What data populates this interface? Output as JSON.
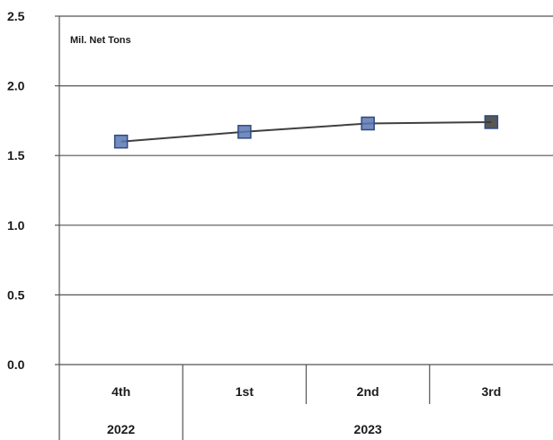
{
  "chart_data": {
    "type": "line",
    "unit_label": "Mil. Net Tons",
    "categories": [
      "4th",
      "1st",
      "2nd",
      "3rd"
    ],
    "category_groups": [
      {
        "label": "2022",
        "span": 1
      },
      {
        "label": "2023",
        "span": 3
      }
    ],
    "series": [
      {
        "values": [
          1.6,
          1.67,
          1.73,
          1.74
        ],
        "line_color": "#404040",
        "marker_colors": [
          "#5a78b4",
          "#5a78b4",
          "#5a78b4",
          "#3a3a3a"
        ]
      }
    ],
    "ylim": [
      0,
      2.5
    ],
    "yticks": [
      "0.0",
      "0.5",
      "1.0",
      "1.5",
      "2.0",
      "2.5"
    ],
    "grid": true
  }
}
